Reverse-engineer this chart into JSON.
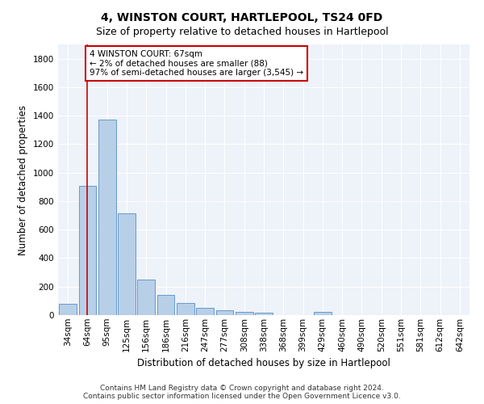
{
  "title": "4, WINSTON COURT, HARTLEPOOL, TS24 0FD",
  "subtitle": "Size of property relative to detached houses in Hartlepool",
  "xlabel": "Distribution of detached houses by size in Hartlepool",
  "ylabel": "Number of detached properties",
  "categories": [
    "34sqm",
    "64sqm",
    "95sqm",
    "125sqm",
    "156sqm",
    "186sqm",
    "216sqm",
    "247sqm",
    "277sqm",
    "308sqm",
    "338sqm",
    "368sqm",
    "399sqm",
    "429sqm",
    "460sqm",
    "490sqm",
    "520sqm",
    "551sqm",
    "581sqm",
    "612sqm",
    "642sqm"
  ],
  "values": [
    82,
    910,
    1370,
    715,
    248,
    140,
    85,
    52,
    32,
    25,
    18,
    0,
    0,
    20,
    0,
    0,
    0,
    0,
    0,
    0,
    0
  ],
  "bar_color": "#b8cfe8",
  "bar_edge_color": "#6699cc",
  "property_line_x": 1.0,
  "annotation_text": "4 WINSTON COURT: 67sqm\n← 2% of detached houses are smaller (88)\n97% of semi-detached houses are larger (3,545) →",
  "annotation_box_color": "#ffffff",
  "annotation_box_edge": "#cc0000",
  "vline_color": "#cc0000",
  "ylim": [
    0,
    1900
  ],
  "yticks": [
    0,
    200,
    400,
    600,
    800,
    1000,
    1200,
    1400,
    1600,
    1800
  ],
  "footer": "Contains HM Land Registry data © Crown copyright and database right 2024.\nContains public sector information licensed under the Open Government Licence v3.0.",
  "bg_color": "#eef2f9",
  "title_fontsize": 10,
  "subtitle_fontsize": 9,
  "axis_label_fontsize": 8.5,
  "tick_fontsize": 7.5,
  "annotation_fontsize": 7.5,
  "footer_fontsize": 6.5
}
